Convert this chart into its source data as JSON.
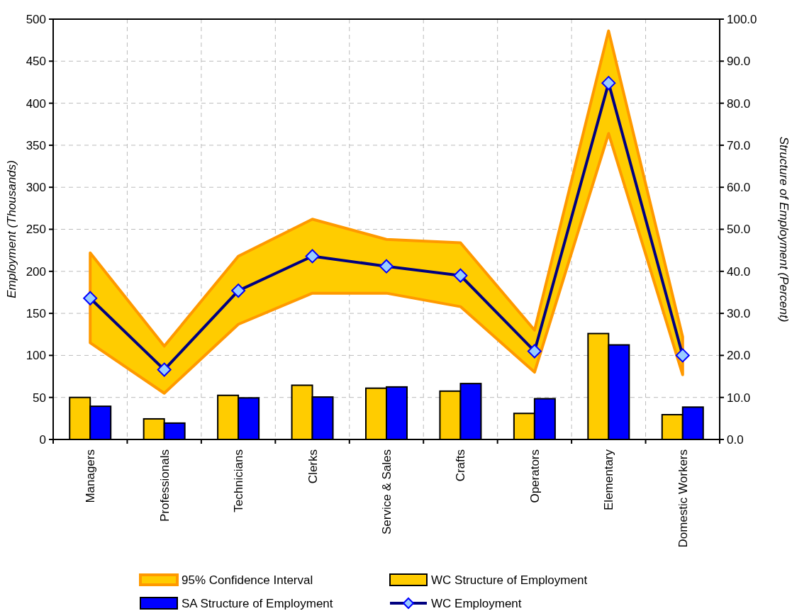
{
  "chart_data": {
    "type": "bar",
    "categories": [
      "Managers",
      "Professionals",
      "Technicians",
      "Clerks",
      "Service & Sales",
      "Crafts",
      "Operators",
      "Elementary",
      "Domestic Workers"
    ],
    "ylabel": "Employment (Thousands)",
    "y2label": "Structure of Employment (Percent)",
    "ylim": [
      0,
      500
    ],
    "yticks": [
      0,
      50,
      100,
      150,
      200,
      250,
      300,
      350,
      400,
      450,
      500
    ],
    "y2lim": [
      0,
      100
    ],
    "y2ticks": [
      {
        "value": 0,
        "label": "0.0"
      },
      {
        "value": 10,
        "label": "10.0"
      },
      {
        "value": 20,
        "label": "20.0"
      },
      {
        "value": 30,
        "label": "30.0"
      },
      {
        "value": 40,
        "label": "40.0"
      },
      {
        "value": 50,
        "label": "50.0"
      },
      {
        "value": 60,
        "label": "60.0"
      },
      {
        "value": 70,
        "label": "70.0"
      },
      {
        "value": 80,
        "label": "80.0"
      },
      {
        "value": 90,
        "label": "90.0"
      },
      {
        "value": 100,
        "label": "100.0"
      }
    ],
    "grid": true,
    "legend": "bottom",
    "annotations": [
      "95% Confidence Interval"
    ],
    "series": [
      {
        "name": "WC Structure of Employment",
        "axis": "y2",
        "color": "#ffcc00",
        "values": [
          10.0,
          4.9,
          10.5,
          12.9,
          12.2,
          11.5,
          6.2,
          25.2,
          5.9
        ]
      },
      {
        "name": "SA Structure of Employment",
        "axis": "y2",
        "color": "#0000ff",
        "values": [
          7.9,
          3.9,
          9.9,
          10.1,
          12.5,
          13.3,
          9.7,
          22.5,
          7.7
        ]
      },
      {
        "name": "WC Employment",
        "type": "line",
        "color": "#000080",
        "marker": "diamond",
        "values": [
          168,
          83,
          177,
          218,
          206,
          195,
          105,
          424,
          100
        ],
        "lower": [
          115,
          55,
          137,
          174,
          174,
          158,
          80,
          364,
          77
        ],
        "upper": [
          222,
          111,
          218,
          262,
          238,
          234,
          130,
          486,
          122
        ]
      }
    ]
  }
}
